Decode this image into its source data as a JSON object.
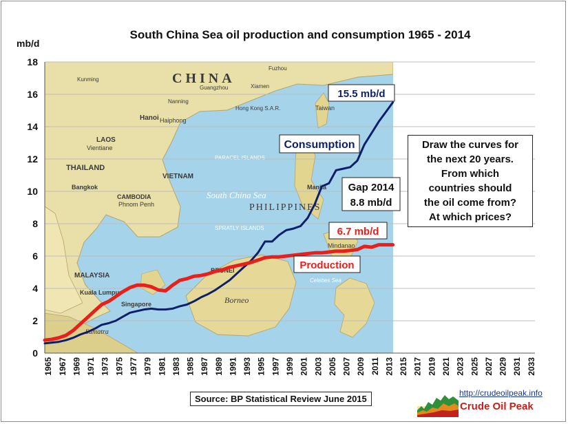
{
  "chart_data": {
    "type": "line",
    "title": "South China Sea oil production and consumption  1965 - 2014",
    "ylabel": "mb/d",
    "xlabel": "",
    "ylim": [
      0,
      18
    ],
    "xlim": [
      1965,
      2034
    ],
    "y_ticks": [
      "0",
      "2",
      "4",
      "6",
      "8",
      "10",
      "12",
      "14",
      "16",
      "18"
    ],
    "x_ticks": [
      "1965",
      "1967",
      "1969",
      "1971",
      "1973",
      "1975",
      "1977",
      "1979",
      "1981",
      "1983",
      "1985",
      "1987",
      "1989",
      "1991",
      "1993",
      "1995",
      "1997",
      "1999",
      "2001",
      "2003",
      "2005",
      "2007",
      "2009",
      "2011",
      "2013",
      "2015",
      "2017",
      "2019",
      "2021",
      "2023",
      "2025",
      "2027",
      "2029",
      "2031",
      "2033"
    ],
    "grid": "horizontal",
    "background": "map of the South China Sea region",
    "series": [
      {
        "name": "Consumption",
        "color": "#0d1f6b",
        "x": [
          1965,
          1966,
          1967,
          1968,
          1969,
          1970,
          1971,
          1972,
          1973,
          1974,
          1975,
          1976,
          1977,
          1978,
          1979,
          1980,
          1981,
          1982,
          1983,
          1984,
          1985,
          1986,
          1987,
          1988,
          1989,
          1990,
          1991,
          1992,
          1993,
          1994,
          1995,
          1996,
          1997,
          1998,
          1999,
          2000,
          2001,
          2002,
          2003,
          2004,
          2005,
          2006,
          2007,
          2008,
          2009,
          2010,
          2011,
          2012,
          2013,
          2014
        ],
        "values": [
          0.6,
          0.65,
          0.7,
          0.8,
          0.95,
          1.15,
          1.3,
          1.5,
          1.75,
          1.85,
          2.0,
          2.25,
          2.5,
          2.6,
          2.7,
          2.75,
          2.7,
          2.7,
          2.75,
          2.9,
          3.0,
          3.2,
          3.45,
          3.65,
          3.9,
          4.2,
          4.5,
          4.9,
          5.3,
          5.7,
          6.2,
          6.9,
          6.9,
          7.3,
          7.6,
          7.7,
          7.85,
          8.35,
          9.2,
          10.3,
          10.5,
          11.3,
          11.4,
          11.5,
          11.9,
          12.9,
          13.6,
          14.3,
          14.9,
          15.5
        ]
      },
      {
        "name": "Production",
        "color": "#e8201c",
        "x": [
          1965,
          1966,
          1967,
          1968,
          1969,
          1970,
          1971,
          1972,
          1973,
          1974,
          1975,
          1976,
          1977,
          1978,
          1979,
          1980,
          1981,
          1982,
          1983,
          1984,
          1985,
          1986,
          1987,
          1988,
          1989,
          1990,
          1991,
          1992,
          1993,
          1994,
          1995,
          1996,
          1997,
          1998,
          1999,
          2000,
          2001,
          2002,
          2003,
          2004,
          2005,
          2006,
          2007,
          2008,
          2009,
          2010,
          2011,
          2012,
          2013,
          2014
        ],
        "values": [
          0.8,
          0.85,
          0.95,
          1.1,
          1.4,
          1.8,
          2.2,
          2.6,
          3.0,
          3.2,
          3.5,
          3.8,
          4.05,
          4.2,
          4.2,
          4.1,
          3.9,
          3.85,
          4.2,
          4.5,
          4.6,
          4.75,
          4.8,
          4.9,
          5.05,
          5.15,
          5.3,
          5.4,
          5.5,
          5.6,
          5.75,
          5.9,
          5.95,
          5.95,
          6.0,
          6.05,
          6.1,
          6.15,
          6.2,
          6.2,
          6.25,
          6.3,
          6.3,
          6.35,
          6.4,
          6.6,
          6.55,
          6.7,
          6.7,
          6.7
        ]
      }
    ],
    "annotations": {
      "consumption_end": "15.5 mb/d",
      "consumption_label": "Consumption",
      "production_end": "6.7 mb/d",
      "production_label": "Production",
      "gap_line1": "Gap 2014",
      "gap_line2": "8.8 mb/d"
    },
    "note_lines": [
      "Draw the curves for",
      "the next 20 years.",
      "From which",
      "countries should",
      "the oil come from?",
      "At which prices?"
    ],
    "source": "Source: BP Statistical Review June 2015",
    "map_labels": [
      "CHINA",
      "LAOS",
      "Vientiane",
      "THAILAND",
      "Bangkok",
      "CAMBODIA",
      "Phnom Penh",
      "VIETNAM",
      "Hanoi",
      "Haiphong",
      "South China Sea",
      "PARACEL ISLANDS",
      "SPRATLY ISLANDS",
      "PHILIPPINES",
      "Manila",
      "Taiwan",
      "Hong Kong S.A.R.",
      "MALAYSIA",
      "Kuala Lumpur",
      "Singapore",
      "BRUNEI",
      "Borneo",
      "Sumatra",
      "Mindanao",
      "Celebes Sea",
      "Fuzhou",
      "Guangzhou",
      "Nanning",
      "Kunming",
      "Xiamen"
    ]
  },
  "brand": {
    "url": "http://crudeoilpeak.info",
    "name": "Crude Oil Peak"
  },
  "colors": {
    "consumption": "#0d1f6b",
    "production": "#e8201c",
    "land": "#e9dfa8",
    "sea": "#a4d3ea"
  }
}
